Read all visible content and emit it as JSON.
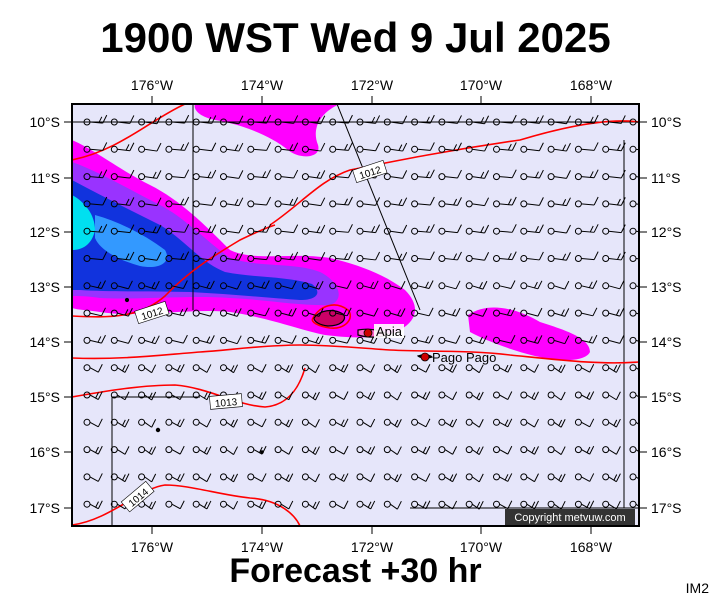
{
  "title": "1900 WST Wed 9 Jul 2025",
  "forecast_label": "Forecast +30 hr",
  "corner_code": "IM2",
  "copyright": "Copyright metvuw.com",
  "colors": {
    "background": "#e6e6fa",
    "isobar": "#ff0000",
    "rain_light": "#ff00ff",
    "rain_mid": "#9900ff",
    "rain_heavy": "#0000cc",
    "rain_extreme": "#00e5ff"
  },
  "longitude_ticks": [
    "176°W",
    "174°W",
    "172°W",
    "170°W",
    "168°W"
  ],
  "latitude_ticks": [
    "10°S",
    "11°S",
    "12°S",
    "13°S",
    "14°S",
    "15°S",
    "16°S",
    "17°S"
  ],
  "isobar_labels": [
    "1012",
    "1012",
    "1013",
    "1014"
  ],
  "places": [
    {
      "name": "Apia"
    },
    {
      "name": "Pago Pago"
    }
  ]
}
